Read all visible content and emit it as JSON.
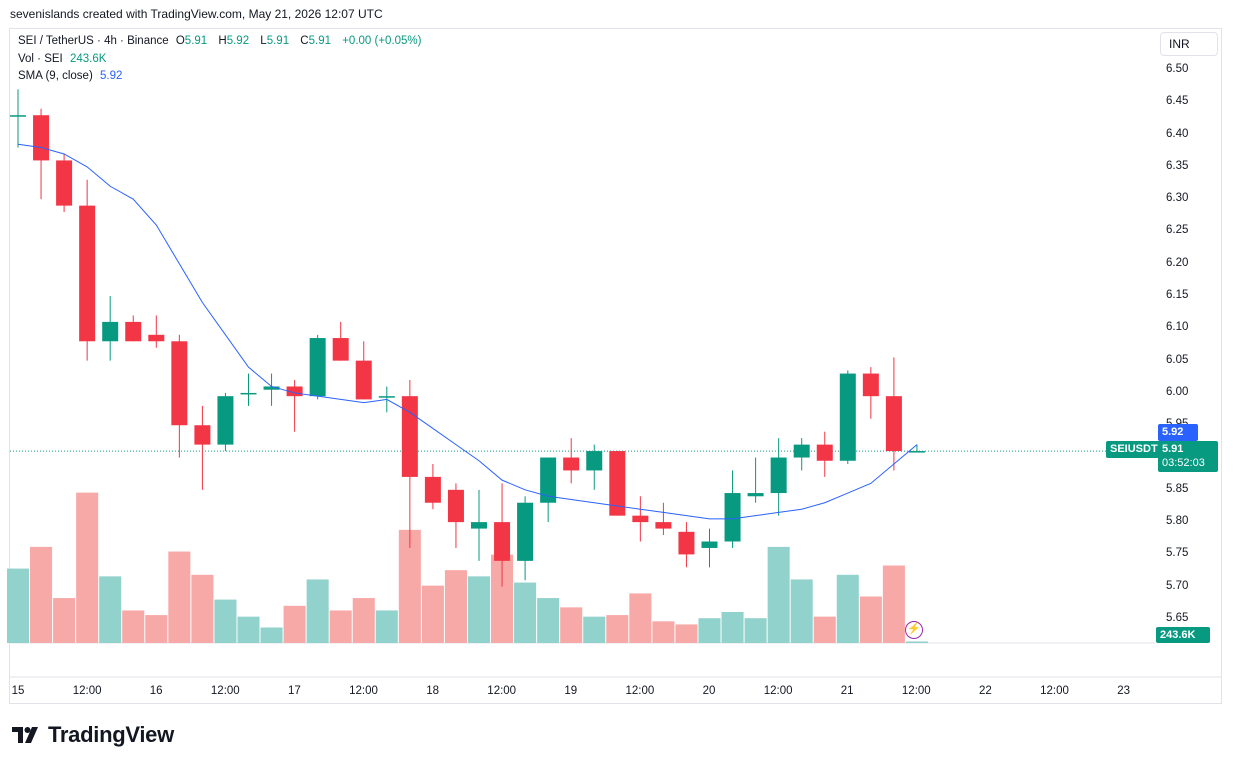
{
  "caption": "sevenislands created with TradingView.com, May 21, 2026 12:07 UTC",
  "legend": {
    "symbol": "SEI / TetherUS · 4h · Binance",
    "o_label": "O",
    "o_value": "5.91",
    "h_label": "H",
    "h_value": "5.92",
    "l_label": "L",
    "l_value": "5.91",
    "c_label": "C",
    "c_value": "5.91",
    "change": "+0.00 (+0.05%)",
    "vol_label": "Vol · SEI",
    "vol_value": "243.6K",
    "sma_label": "SMA (9, close)",
    "sma_value": "5.92"
  },
  "currency_button": "INR",
  "price_tags": {
    "symbol": "SEIUSDT",
    "sma": "5.92",
    "price": "5.91",
    "countdown": "03:52:03",
    "volume": "243.6K"
  },
  "brand": "TradingView",
  "colors": {
    "up": "#089981",
    "down": "#f23645",
    "up_vol": "#92d2cc",
    "down_vol": "#f7a9a7",
    "sma": "#2962ff"
  },
  "chart_data": {
    "type": "candlestick",
    "symbol": "SEI / TetherUS",
    "interval": "4h",
    "y_ticks": [
      "6.50",
      "6.45",
      "6.40",
      "6.35",
      "6.30",
      "6.25",
      "6.20",
      "6.15",
      "6.10",
      "6.05",
      "6.00",
      "5.95",
      "5.85",
      "5.80",
      "5.75",
      "5.70",
      "5.65"
    ],
    "x_ticks": [
      "15",
      "12:00",
      "16",
      "12:00",
      "17",
      "12:00",
      "18",
      "12:00",
      "19",
      "12:00",
      "20",
      "12:00",
      "21",
      "12:00",
      "22",
      "12:00",
      "23"
    ],
    "ylim": [
      5.62,
      6.52
    ],
    "grid": false,
    "last_price": 5.91,
    "candles": [
      {
        "o": 6.43,
        "h": 6.47,
        "l": 6.38,
        "c": 6.43
      },
      {
        "o": 6.43,
        "h": 6.44,
        "l": 6.3,
        "c": 6.36
      },
      {
        "o": 6.36,
        "h": 6.37,
        "l": 6.28,
        "c": 6.29
      },
      {
        "o": 6.29,
        "h": 6.33,
        "l": 6.05,
        "c": 6.08
      },
      {
        "o": 6.08,
        "h": 6.15,
        "l": 6.05,
        "c": 6.11
      },
      {
        "o": 6.11,
        "h": 6.12,
        "l": 6.08,
        "c": 6.08
      },
      {
        "o": 6.09,
        "h": 6.12,
        "l": 6.07,
        "c": 6.08
      },
      {
        "o": 6.08,
        "h": 6.09,
        "l": 5.9,
        "c": 5.95
      },
      {
        "o": 5.95,
        "h": 5.98,
        "l": 5.85,
        "c": 5.92
      },
      {
        "o": 5.92,
        "h": 6.0,
        "l": 5.91,
        "c": 5.995
      },
      {
        "o": 6.0,
        "h": 6.03,
        "l": 5.98,
        "c": 6.0
      },
      {
        "o": 6.005,
        "h": 6.03,
        "l": 5.98,
        "c": 6.01
      },
      {
        "o": 6.01,
        "h": 6.02,
        "l": 5.94,
        "c": 5.995
      },
      {
        "o": 5.995,
        "h": 6.09,
        "l": 5.99,
        "c": 6.085
      },
      {
        "o": 6.085,
        "h": 6.11,
        "l": 6.05,
        "c": 6.05
      },
      {
        "o": 6.05,
        "h": 6.08,
        "l": 5.99,
        "c": 5.99
      },
      {
        "o": 5.995,
        "h": 6.01,
        "l": 5.97,
        "c": 5.995
      },
      {
        "o": 5.995,
        "h": 6.02,
        "l": 5.76,
        "c": 5.87
      },
      {
        "o": 5.87,
        "h": 5.89,
        "l": 5.82,
        "c": 5.83
      },
      {
        "o": 5.85,
        "h": 5.86,
        "l": 5.76,
        "c": 5.8
      },
      {
        "o": 5.79,
        "h": 5.85,
        "l": 5.74,
        "c": 5.8
      },
      {
        "o": 5.8,
        "h": 5.86,
        "l": 5.7,
        "c": 5.74
      },
      {
        "o": 5.74,
        "h": 5.84,
        "l": 5.71,
        "c": 5.83
      },
      {
        "o": 5.83,
        "h": 5.9,
        "l": 5.8,
        "c": 5.9
      },
      {
        "o": 5.9,
        "h": 5.93,
        "l": 5.86,
        "c": 5.88
      },
      {
        "o": 5.88,
        "h": 5.92,
        "l": 5.85,
        "c": 5.91
      },
      {
        "o": 5.91,
        "h": 5.91,
        "l": 5.81,
        "c": 5.81
      },
      {
        "o": 5.81,
        "h": 5.84,
        "l": 5.77,
        "c": 5.8
      },
      {
        "o": 5.8,
        "h": 5.83,
        "l": 5.78,
        "c": 5.79
      },
      {
        "o": 5.785,
        "h": 5.8,
        "l": 5.73,
        "c": 5.75
      },
      {
        "o": 5.76,
        "h": 5.79,
        "l": 5.73,
        "c": 5.77
      },
      {
        "o": 5.77,
        "h": 5.88,
        "l": 5.76,
        "c": 5.845
      },
      {
        "o": 5.84,
        "h": 5.9,
        "l": 5.83,
        "c": 5.845
      },
      {
        "o": 5.845,
        "h": 5.93,
        "l": 5.81,
        "c": 5.9
      },
      {
        "o": 5.9,
        "h": 5.93,
        "l": 5.88,
        "c": 5.92
      },
      {
        "o": 5.92,
        "h": 5.94,
        "l": 5.87,
        "c": 5.895
      },
      {
        "o": 5.895,
        "h": 6.035,
        "l": 5.89,
        "c": 6.03
      },
      {
        "o": 6.03,
        "h": 6.04,
        "l": 5.96,
        "c": 5.995
      },
      {
        "o": 5.995,
        "h": 6.055,
        "l": 5.88,
        "c": 5.91
      },
      {
        "o": 5.91,
        "h": 5.92,
        "l": 5.91,
        "c": 5.91
      }
    ],
    "sma": [
      6.385,
      6.38,
      6.37,
      6.35,
      6.32,
      6.3,
      6.26,
      6.2,
      6.14,
      6.09,
      6.04,
      6.01,
      6.0,
      5.995,
      5.99,
      5.985,
      5.99,
      5.97,
      5.945,
      5.92,
      5.895,
      5.865,
      5.85,
      5.84,
      5.835,
      5.83,
      5.825,
      5.82,
      5.815,
      5.81,
      5.805,
      5.805,
      5.81,
      5.815,
      5.82,
      5.83,
      5.845,
      5.86,
      5.89,
      5.92
    ],
    "volume": [
      0.48,
      0.62,
      0.29,
      0.97,
      0.43,
      0.21,
      0.18,
      0.59,
      0.44,
      0.28,
      0.17,
      0.1,
      0.24,
      0.41,
      0.21,
      0.29,
      0.21,
      0.73,
      0.37,
      0.47,
      0.43,
      0.57,
      0.39,
      0.29,
      0.23,
      0.17,
      0.18,
      0.32,
      0.14,
      0.12,
      0.16,
      0.2,
      0.16,
      0.62,
      0.41,
      0.17,
      0.44,
      0.3,
      0.5,
      0.01
    ]
  }
}
